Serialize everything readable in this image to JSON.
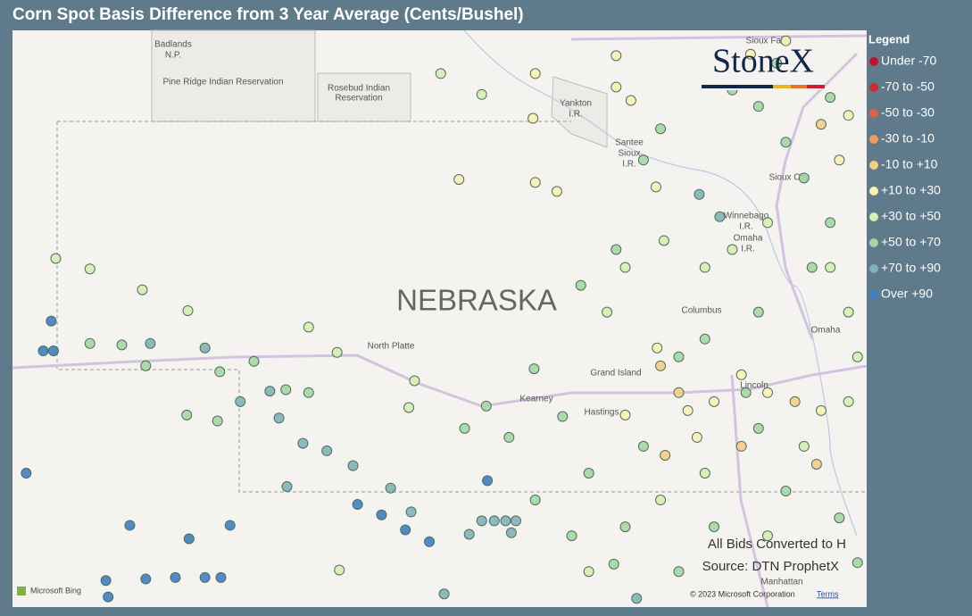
{
  "header": {
    "title": "Corn Spot Basis Difference from 3 Year Average (Cents/Bushel)"
  },
  "legend": {
    "title": "Legend",
    "classes": [
      {
        "label": "Under -70",
        "color": "#c4122a"
      },
      {
        "label": "-70 to -50",
        "color": "#cc2a2e"
      },
      {
        "label": "-50 to -30",
        "color": "#e2603e"
      },
      {
        "label": "-30 to -10",
        "color": "#ee9b5c"
      },
      {
        "label": "-10 to +10",
        "color": "#f5cd86"
      },
      {
        "label": "+10 to +30",
        "color": "#fbf0b4"
      },
      {
        "label": "+30 to +50",
        "color": "#d7edb2"
      },
      {
        "label": "+50 to +70",
        "color": "#a6d6a2"
      },
      {
        "label": "+70 to +90",
        "color": "#7fb2b8"
      },
      {
        "label": "Over +90",
        "color": "#3f80c0"
      }
    ]
  },
  "map": {
    "logo": "StoneX",
    "places": [
      "Badlands",
      "N.P.",
      "Pine Ridge Indian Reservation",
      "Rosebud Indian",
      "Reservation",
      "Yankton",
      "I.R.",
      "Santee",
      "Sioux",
      "I.R.",
      "Sioux Falls",
      "Sioux City",
      "Winnebago",
      "I.R.",
      "Omaha",
      "I.R.",
      "NEBRASKA",
      "North Platte",
      "Columbus",
      "Omaha",
      "Grand Island",
      "Kearney",
      "Hastings",
      "Lincoln",
      "Manhattan"
    ],
    "notes": [
      "All Bids Converted to H",
      "Source: DTN ProphetX"
    ],
    "attribution": [
      "Microsoft Bing",
      "© 2023 Microsoft Corporation",
      "Terms"
    ],
    "points": [
      [
        -102.96,
        41.35,
        9
      ],
      [
        -103.03,
        41.15,
        9
      ],
      [
        -102.94,
        41.15,
        9
      ],
      [
        -103.18,
        40.33,
        9
      ],
      [
        -102.27,
        39.98,
        9
      ],
      [
        -101.75,
        39.89,
        9
      ],
      [
        -101.39,
        39.98,
        9
      ],
      [
        -102.48,
        39.61,
        9
      ],
      [
        -102.46,
        39.5,
        9
      ],
      [
        -102.13,
        39.62,
        9
      ],
      [
        -101.87,
        39.63,
        9
      ],
      [
        -101.61,
        39.63,
        9
      ],
      [
        -101.47,
        39.63,
        9
      ],
      [
        -100.06,
        40.05,
        9
      ],
      [
        -100.27,
        40.12,
        9
      ],
      [
        -99.64,
        39.87,
        9
      ],
      [
        -99.85,
        39.95,
        9
      ],
      [
        -99.13,
        40.28,
        9
      ],
      [
        -101.61,
        41.17,
        8
      ],
      [
        -102.09,
        41.2,
        8
      ],
      [
        -101.3,
        40.81,
        8
      ],
      [
        -101.04,
        40.88,
        8
      ],
      [
        -100.96,
        40.7,
        8
      ],
      [
        -100.75,
        40.53,
        8
      ],
      [
        -100.54,
        40.48,
        8
      ],
      [
        -100.31,
        40.38,
        8
      ],
      [
        -100.89,
        40.24,
        8
      ],
      [
        -99.98,
        40.23,
        8
      ],
      [
        -99.8,
        40.07,
        8
      ],
      [
        -99.29,
        39.92,
        8
      ],
      [
        -99.18,
        40.01,
        8
      ],
      [
        -99.07,
        40.01,
        8
      ],
      [
        -98.97,
        40.01,
        8
      ],
      [
        -98.88,
        40.01,
        8
      ],
      [
        -98.92,
        39.93,
        8
      ],
      [
        -99.51,
        39.52,
        8
      ],
      [
        -97.82,
        39.49,
        8
      ],
      [
        -97.09,
        42.05,
        8
      ],
      [
        -97.27,
        42.2,
        8
      ],
      [
        -102.62,
        41.2,
        7
      ],
      [
        -102.34,
        41.19,
        7
      ],
      [
        -102.13,
        41.05,
        7
      ],
      [
        -101.48,
        41.01,
        7
      ],
      [
        -101.18,
        41.08,
        7
      ],
      [
        -100.9,
        40.89,
        7
      ],
      [
        -100.7,
        40.87,
        7
      ],
      [
        -101.77,
        40.72,
        7
      ],
      [
        -101.5,
        40.68,
        7
      ],
      [
        -99.14,
        40.78,
        7
      ],
      [
        -98.94,
        40.57,
        7
      ],
      [
        -98.72,
        41.03,
        7
      ],
      [
        -98.47,
        40.71,
        7
      ],
      [
        -98.24,
        40.33,
        7
      ],
      [
        -97.92,
        39.97,
        7
      ],
      [
        -98.02,
        39.72,
        7
      ],
      [
        -97.45,
        39.67,
        7
      ],
      [
        -97.14,
        39.97,
        7
      ],
      [
        -96.51,
        40.21,
        7
      ],
      [
        -96.75,
        40.63,
        7
      ],
      [
        -96.86,
        40.87,
        7
      ],
      [
        -97.45,
        41.11,
        7
      ],
      [
        -97.22,
        41.23,
        7
      ],
      [
        -96.75,
        41.41,
        7
      ],
      [
        -96.28,
        41.71,
        7
      ],
      [
        -96.12,
        42.01,
        7
      ],
      [
        -96.35,
        42.31,
        7
      ],
      [
        -96.51,
        42.55,
        7
      ],
      [
        -96.75,
        42.79,
        7
      ],
      [
        -96.98,
        42.9,
        7
      ],
      [
        -96.59,
        43.08,
        7
      ],
      [
        -96.12,
        42.85,
        7
      ],
      [
        -97.61,
        42.64,
        7
      ],
      [
        -97.76,
        42.43,
        7
      ],
      [
        -98.0,
        41.83,
        7
      ],
      [
        -98.31,
        41.59,
        7
      ],
      [
        -99.33,
        40.63,
        7
      ],
      [
        -98.71,
        40.15,
        7
      ],
      [
        -98.39,
        39.91,
        7
      ],
      [
        -97.76,
        40.51,
        7
      ],
      [
        -96.04,
        40.03,
        7
      ],
      [
        -95.88,
        39.73,
        7
      ],
      [
        -102.92,
        41.77,
        6
      ],
      [
        -102.62,
        41.7,
        6
      ],
      [
        -102.16,
        41.56,
        6
      ],
      [
        -101.76,
        41.42,
        6
      ],
      [
        -100.7,
        41.31,
        6
      ],
      [
        -100.45,
        41.14,
        6
      ],
      [
        -99.77,
        40.95,
        6
      ],
      [
        -99.82,
        40.77,
        6
      ],
      [
        -100.43,
        39.68,
        6
      ],
      [
        -99.18,
        42.87,
        6
      ],
      [
        -99.54,
        43.01,
        6
      ],
      [
        -97.58,
        41.89,
        6
      ],
      [
        -97.92,
        41.71,
        6
      ],
      [
        -98.08,
        41.41,
        6
      ],
      [
        -97.22,
        41.71,
        6
      ],
      [
        -96.98,
        41.83,
        6
      ],
      [
        -96.67,
        42.01,
        6
      ],
      [
        -96.12,
        41.71,
        6
      ],
      [
        -95.96,
        41.41,
        6
      ],
      [
        -95.88,
        41.11,
        6
      ],
      [
        -95.96,
        40.81,
        6
      ],
      [
        -96.35,
        40.51,
        6
      ],
      [
        -96.67,
        39.91,
        6
      ],
      [
        -97.22,
        40.33,
        6
      ],
      [
        -97.61,
        40.15,
        6
      ],
      [
        -98.24,
        39.67,
        6
      ],
      [
        -99.38,
        42.3,
        5
      ],
      [
        -98.71,
        42.28,
        5
      ],
      [
        -98.52,
        42.22,
        5
      ],
      [
        -98.71,
        43.01,
        5
      ],
      [
        -98.0,
        43.13,
        5
      ],
      [
        -98.0,
        42.92,
        5
      ],
      [
        -97.87,
        42.83,
        5
      ],
      [
        -98.73,
        42.71,
        5
      ],
      [
        -97.65,
        42.25,
        5
      ],
      [
        -97.64,
        41.17,
        5
      ],
      [
        -97.37,
        40.75,
        5
      ],
      [
        -97.14,
        40.81,
        5
      ],
      [
        -96.9,
        40.99,
        5
      ],
      [
        -97.29,
        40.57,
        5
      ],
      [
        -97.92,
        40.72,
        5
      ],
      [
        -96.67,
        40.87,
        5
      ],
      [
        -96.2,
        40.75,
        5
      ],
      [
        -96.04,
        42.43,
        5
      ],
      [
        -95.96,
        42.73,
        5
      ],
      [
        -96.82,
        43.14,
        5
      ],
      [
        -96.51,
        43.23,
        5
      ],
      [
        -97.61,
        41.05,
        4
      ],
      [
        -97.45,
        40.87,
        4
      ],
      [
        -96.9,
        40.51,
        4
      ],
      [
        -96.24,
        40.39,
        4
      ],
      [
        -96.43,
        40.81,
        4
      ],
      [
        -96.2,
        42.67,
        4
      ],
      [
        -97.57,
        40.45,
        4
      ]
    ]
  }
}
